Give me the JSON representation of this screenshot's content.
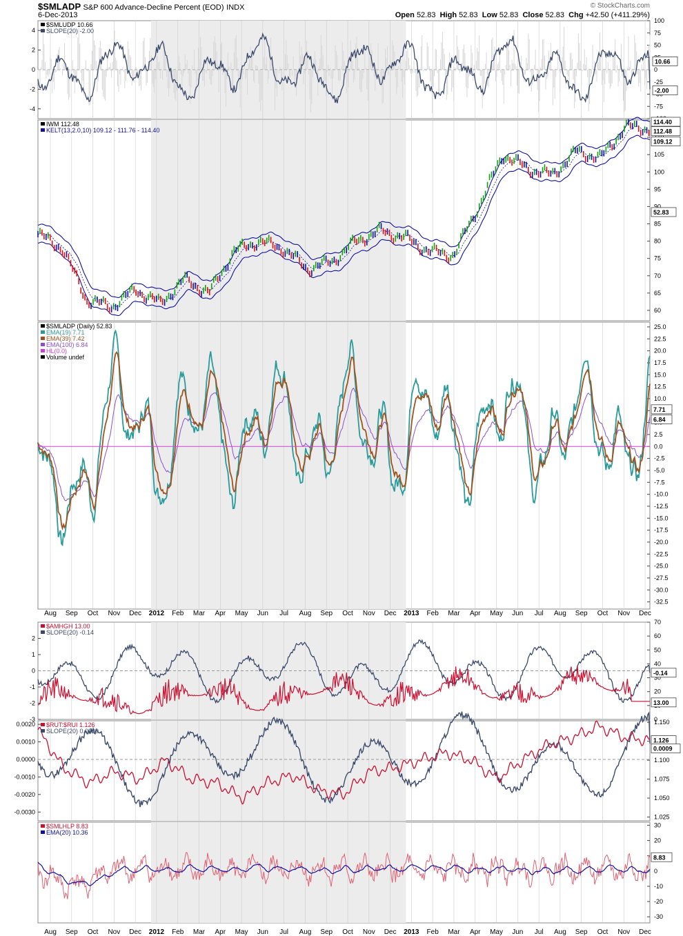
{
  "header": {
    "symbol": "$SMLADP",
    "description": "S&P 600 Advance-Decline Percent (EOD)",
    "exchange": "INDX",
    "date": "6-Dec-2013",
    "credit": "© StockCharts.com",
    "open_label": "Open",
    "open": "52.83",
    "high_label": "High",
    "high": "52.83",
    "low_label": "Low",
    "low": "52.83",
    "close_label": "Close",
    "close": "52.83",
    "chg_label": "Chg",
    "chg": "+42.50 (+411.29%)"
  },
  "colors": {
    "navy": "#3b4a6b",
    "teal": "#2a9a9a",
    "brown": "#a0521e",
    "purple": "#8a4fd0",
    "magenta": "#d040d0",
    "red": "#cc1030",
    "pink": "#e06070",
    "blue": "#1010a0",
    "green": "#10a010",
    "grid": "#cccccc",
    "shade": "#ececec"
  },
  "months": [
    {
      "label": "Aug",
      "bold": false
    },
    {
      "label": "Sep",
      "bold": false
    },
    {
      "label": "Oct",
      "bold": false
    },
    {
      "label": "Nov",
      "bold": false
    },
    {
      "label": "Dec",
      "bold": false
    },
    {
      "label": "2012",
      "bold": true
    },
    {
      "label": "Feb",
      "bold": false
    },
    {
      "label": "Mar",
      "bold": false
    },
    {
      "label": "Apr",
      "bold": false
    },
    {
      "label": "May",
      "bold": false
    },
    {
      "label": "Jun",
      "bold": false
    },
    {
      "label": "Jul",
      "bold": false
    },
    {
      "label": "Aug",
      "bold": false
    },
    {
      "label": "Sep",
      "bold": false
    },
    {
      "label": "Oct",
      "bold": false
    },
    {
      "label": "Nov",
      "bold": false
    },
    {
      "label": "Dec",
      "bold": false
    },
    {
      "label": "2013",
      "bold": true
    },
    {
      "label": "Feb",
      "bold": false
    },
    {
      "label": "Mar",
      "bold": false
    },
    {
      "label": "Apr",
      "bold": false
    },
    {
      "label": "May",
      "bold": false
    },
    {
      "label": "Jun",
      "bold": false
    },
    {
      "label": "Jul",
      "bold": false
    },
    {
      "label": "Aug",
      "bold": false
    },
    {
      "label": "Sep",
      "bold": false
    },
    {
      "label": "Oct",
      "bold": false
    },
    {
      "label": "Nov",
      "bold": false
    },
    {
      "label": "Dec",
      "bold": false
    }
  ],
  "chart_data": [
    {
      "type": "line",
      "legend": [
        "$SMLUDP  10.66",
        "SLOPE(20) -2.00"
      ],
      "left_ticks": [
        "4",
        "2",
        "0",
        "-2",
        "-4"
      ],
      "right_ticks": [
        "100",
        "75",
        "50",
        "25",
        "0",
        "-25",
        "-50",
        "-75",
        "-100"
      ],
      "ylim_left": [
        -5,
        5
      ],
      "ylim_right": [
        -100,
        100
      ],
      "series": [
        {
          "name": "$SMLUDP",
          "last": 10.66,
          "pattern": "oscillator",
          "amp": 50,
          "seed": 3
        },
        {
          "name": "SLOPE(20)",
          "last": -2.0,
          "pattern": "smooth_osc",
          "amp": 2.5,
          "seed": 11
        }
      ],
      "badges": [
        "10.66",
        "-2.00"
      ]
    },
    {
      "type": "line",
      "legend": [
        "IWM  112.48",
        "KELT(13,2.0,10) 109.12 - 111.76 - 114.40"
      ],
      "right_ticks": [
        "110",
        "105",
        "100",
        "95",
        "90",
        "85",
        "80",
        "75",
        "70",
        "65",
        "60"
      ],
      "ylim": [
        57,
        115
      ],
      "series": [
        {
          "name": "IWM",
          "last": 112.48,
          "waypoints": [
            82,
            78,
            63,
            61,
            66,
            62,
            69,
            65,
            77,
            80,
            78,
            72,
            74,
            80,
            83,
            81,
            77,
            76,
            90,
            105,
            101,
            99,
            106,
            104,
            113,
            112.5
          ]
        },
        {
          "name": "KELT upper",
          "last": 114.4
        },
        {
          "name": "KELT middle",
          "last": 111.76
        },
        {
          "name": "KELT lower",
          "last": 109.12
        }
      ],
      "badges": [
        "114.40",
        "112.48",
        "109.12",
        "52.83"
      ]
    },
    {
      "type": "line",
      "legend": [
        "$SMLADP (Daily) 52.83",
        "EMA(19) 7.71",
        "EMA(39) 7.42",
        "EMA(100) 6.84",
        "HL(0.0)",
        "Volume undef"
      ],
      "right_ticks": [
        "25.0",
        "22.5",
        "20.0",
        "17.5",
        "15.0",
        "12.5",
        "10.0",
        "7.5",
        "5.0",
        "2.5",
        "0.0",
        "-2.5",
        "-5.0",
        "-7.5",
        "-10.0",
        "-12.5",
        "-15.0",
        "-17.5",
        "-20.0",
        "-22.5",
        "-25.0",
        "-27.5",
        "-30.0",
        "-32.5"
      ],
      "ylim": [
        -34,
        26
      ],
      "series": [
        {
          "name": "EMA(19)",
          "last": 7.71
        },
        {
          "name": "EMA(39)",
          "last": 7.42
        },
        {
          "name": "EMA(100)",
          "last": 6.84
        },
        {
          "name": "HL(0.0)",
          "last": 0.0
        }
      ],
      "badges": [
        "7.71",
        "6.84"
      ]
    },
    {
      "type": "line",
      "legend": [
        "$AMHGH  13.00",
        "SLOPE(20) -0.14"
      ],
      "left_ticks": [
        "2",
        "1",
        "0",
        "-1",
        "-2",
        "-3"
      ],
      "right_ticks": [
        "70",
        "60",
        "50",
        "40",
        "30",
        "20",
        "10",
        "0"
      ],
      "ylim_left": [
        -3,
        3
      ],
      "ylim_right": [
        0,
        70
      ],
      "series": [
        {
          "name": "$AMHGH",
          "last": 13.0
        },
        {
          "name": "SLOPE(20)",
          "last": -0.14
        }
      ],
      "badges": [
        "-0.14",
        "13.00"
      ]
    },
    {
      "type": "line",
      "legend": [
        "$RUT:$RUI  1.126",
        "SLOPE(20) 0.0009"
      ],
      "left_ticks": [
        "0.0020",
        "0.0010",
        "0.0000",
        "-0.0010",
        "-0.0020",
        "-0.0030"
      ],
      "right_ticks": [
        "1.150",
        "1.125",
        "1.100",
        "1.075",
        "1.050",
        "1.025"
      ],
      "ylim_left": [
        -0.0035,
        0.0022
      ],
      "ylim_right": [
        1.02,
        1.152
      ],
      "series": [
        {
          "name": "$RUT:$RUI",
          "last": 1.126
        },
        {
          "name": "SLOPE(20)",
          "last": 0.0009
        }
      ],
      "badges": [
        "1.126",
        "0.0009"
      ]
    },
    {
      "type": "line",
      "legend": [
        "$SMLHLP  8.83",
        "EMA(20) 10.36"
      ],
      "right_ticks": [
        "30",
        "20",
        "10",
        "0",
        "-10",
        "-20",
        "-30"
      ],
      "ylim": [
        -34,
        32
      ],
      "series": [
        {
          "name": "$SMLHLP",
          "last": 8.83
        },
        {
          "name": "EMA(20)",
          "last": 10.36
        }
      ],
      "badges": [
        "8.83"
      ]
    }
  ]
}
